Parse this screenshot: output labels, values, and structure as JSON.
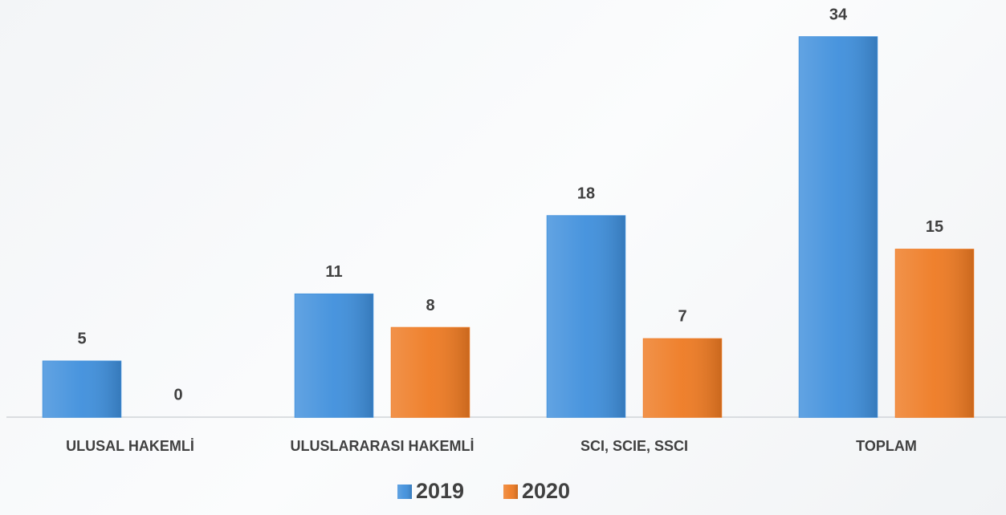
{
  "chart_data": {
    "type": "bar",
    "categories": [
      "ULUSAL HAKEMLİ",
      "ULUSLARARASI HAKEMLİ",
      "SCI, SCIE, SSCI",
      "TOPLAM"
    ],
    "series": [
      {
        "name": "2019",
        "color": "#3f8fdc",
        "values": [
          5,
          11,
          18,
          34
        ]
      },
      {
        "name": "2020",
        "color": "#ee7a22",
        "values": [
          0,
          8,
          7,
          15
        ]
      }
    ]
  }
}
